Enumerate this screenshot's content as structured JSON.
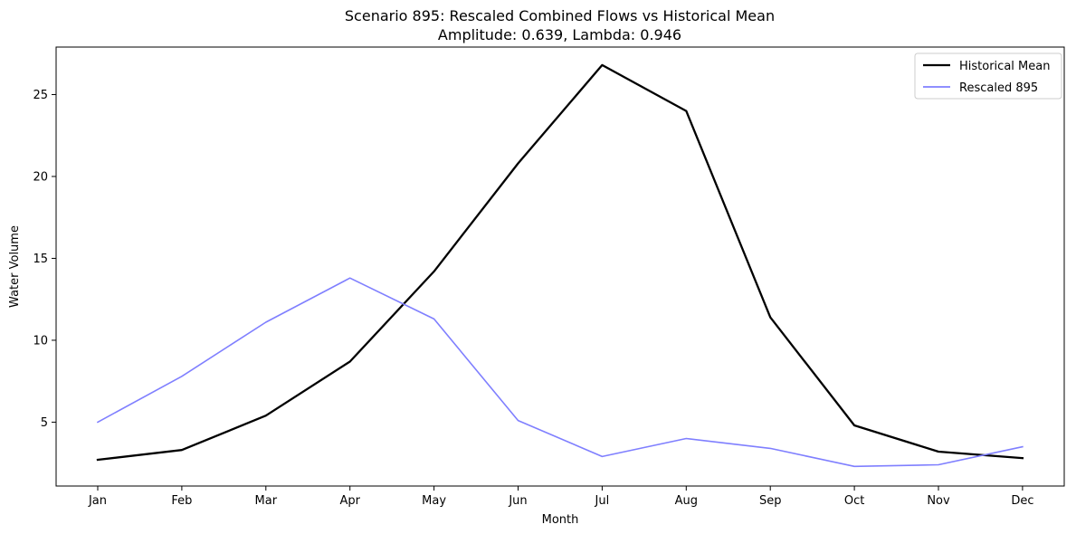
{
  "chart_data": {
    "type": "line",
    "title": "Scenario 895: Rescaled Combined Flows vs Historical Mean",
    "subtitle": "Amplitude: 0.639, Lambda: 0.946",
    "xlabel": "Month",
    "ylabel": "Water Volume",
    "categories": [
      "Jan",
      "Feb",
      "Mar",
      "Apr",
      "May",
      "Jun",
      "Jul",
      "Aug",
      "Sep",
      "Oct",
      "Nov",
      "Dec"
    ],
    "yticks": [
      5,
      10,
      15,
      20,
      25
    ],
    "ylim": [
      1.1,
      27.9
    ],
    "grid": false,
    "legend_position": "top-right",
    "series": [
      {
        "name": "Historical Mean",
        "color": "#000000",
        "values": [
          2.7,
          3.3,
          5.4,
          8.7,
          14.2,
          20.8,
          26.8,
          24.0,
          11.4,
          4.8,
          3.2,
          2.8
        ]
      },
      {
        "name": "Rescaled 895",
        "color": "#7f7fff",
        "values": [
          5.0,
          7.8,
          11.1,
          13.8,
          11.3,
          5.1,
          2.9,
          4.0,
          3.4,
          2.3,
          2.4,
          3.5
        ]
      }
    ]
  }
}
